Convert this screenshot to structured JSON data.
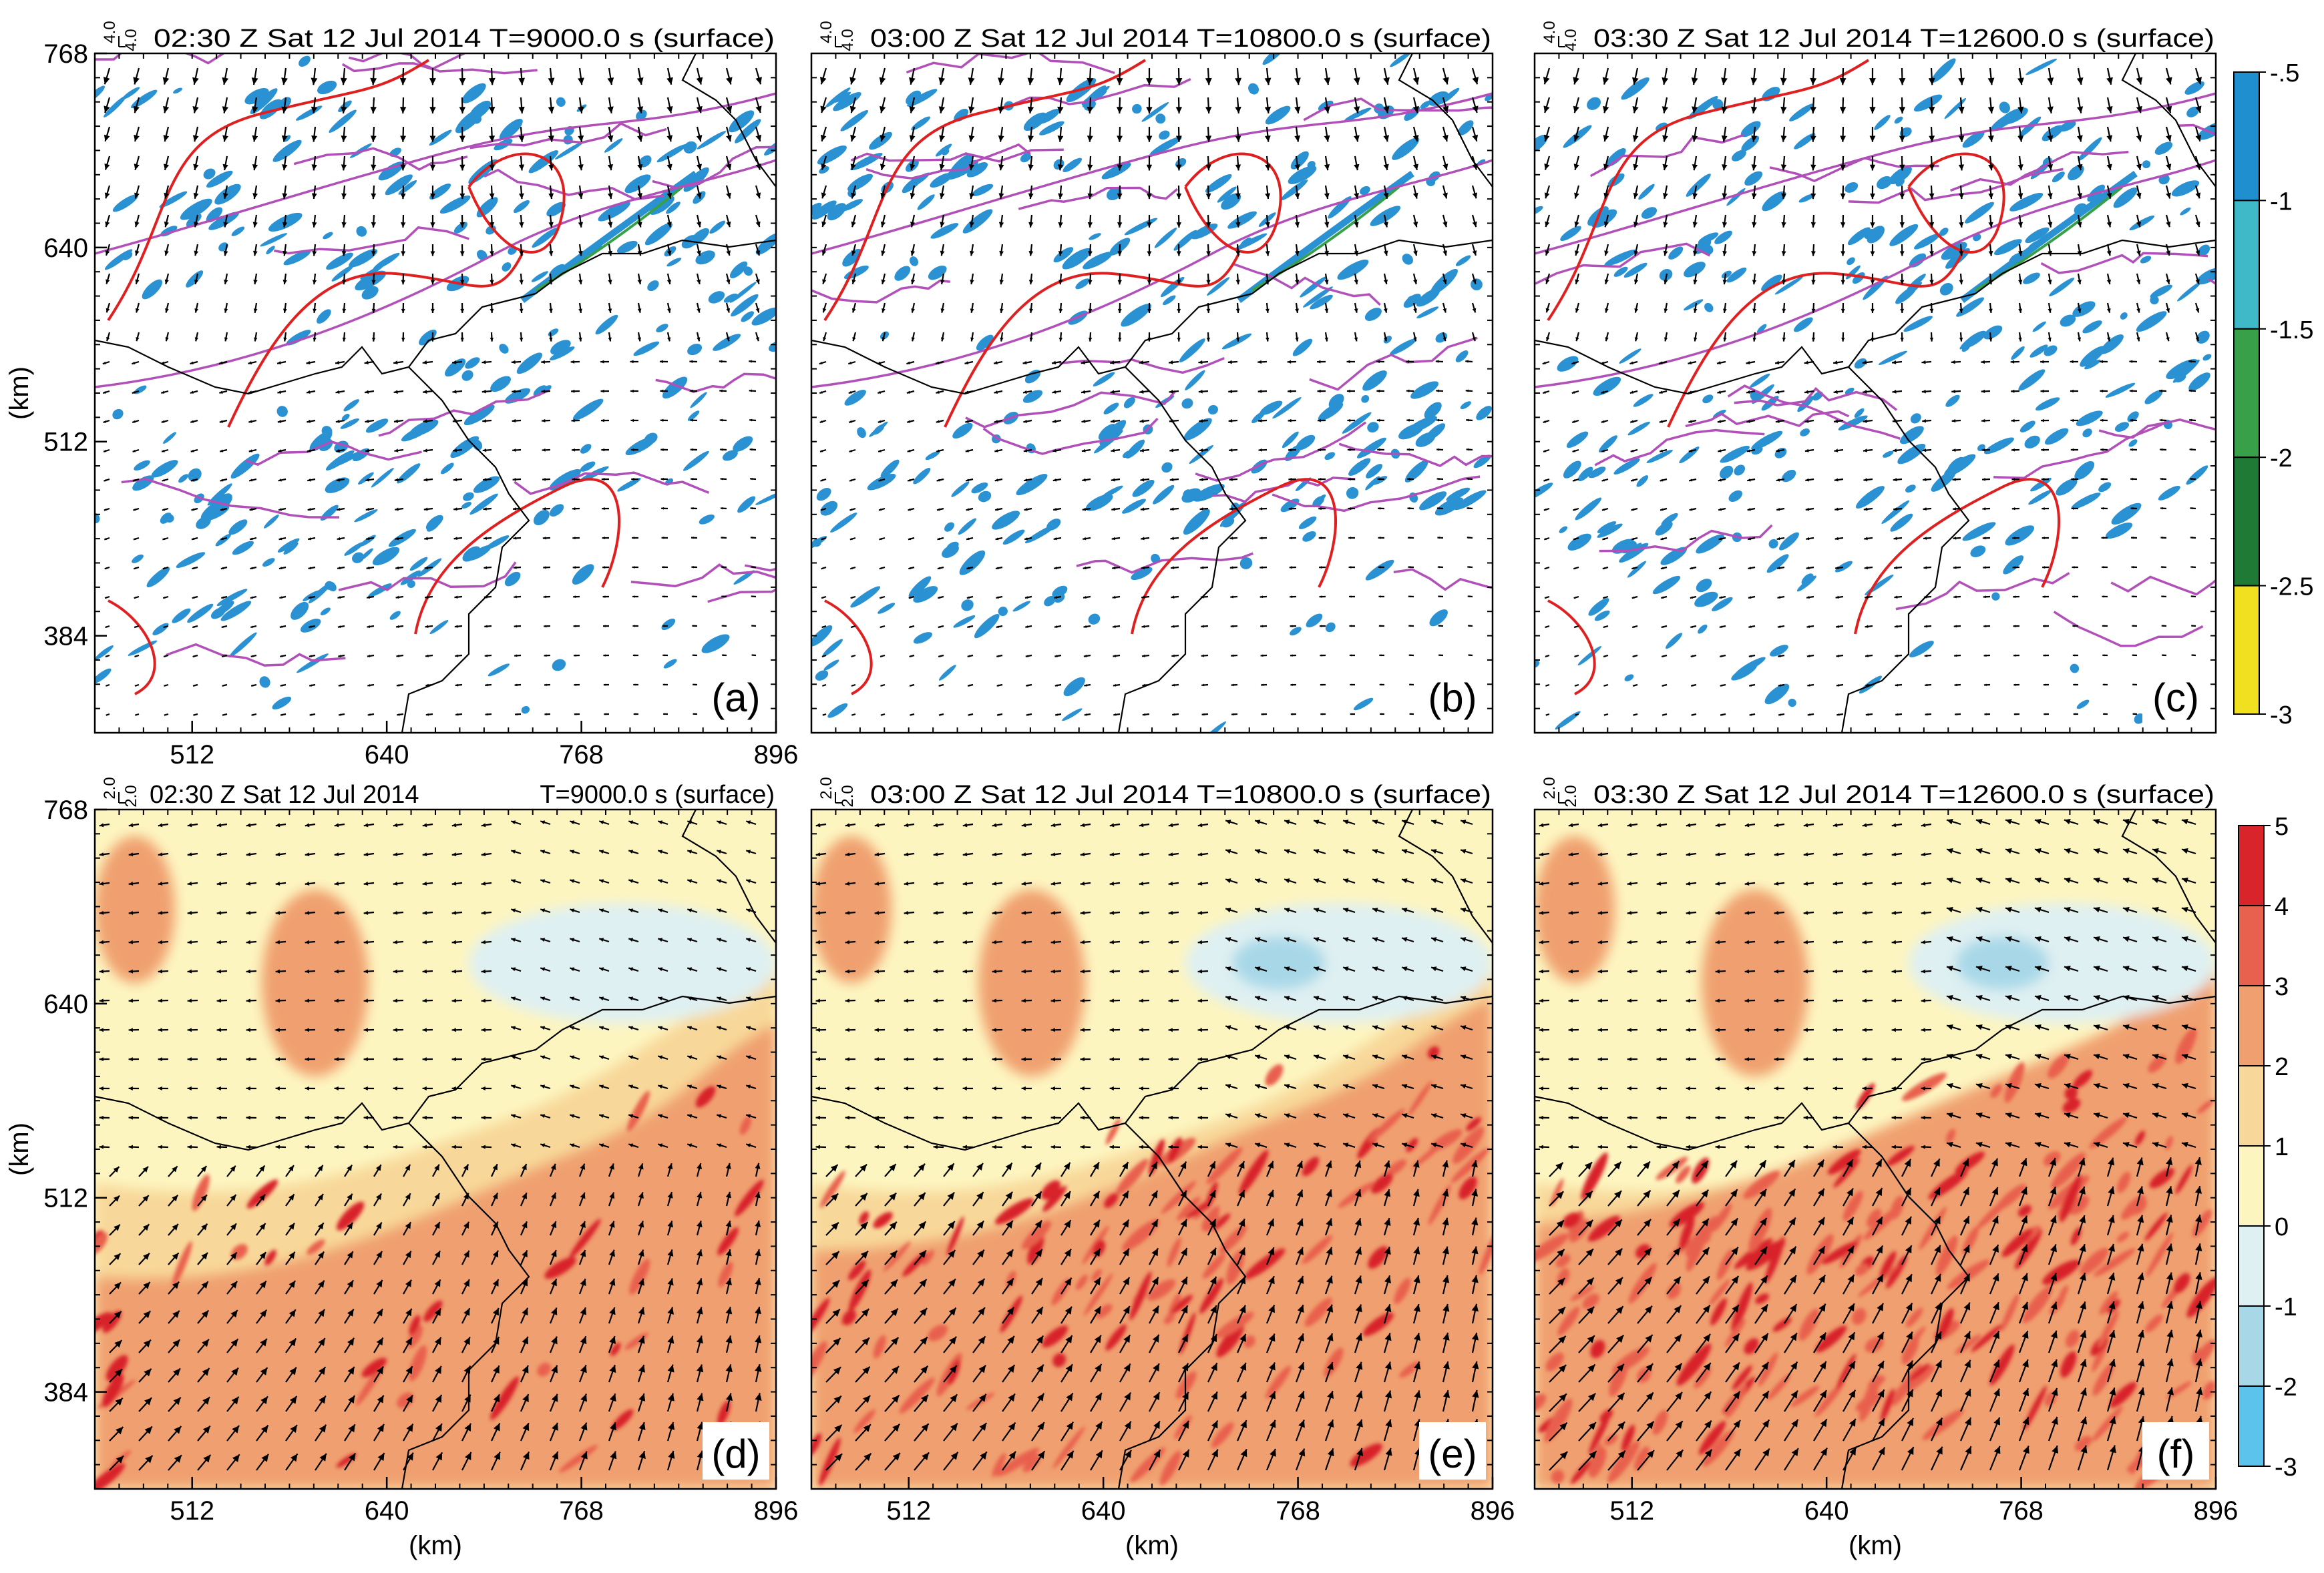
{
  "chart_data": [
    {
      "panel": "a",
      "row": "top",
      "type": "heatmap",
      "title": "02:30 Z Sat 12 Jul 2014 T=9000.0 s (surface)",
      "label": "(a)",
      "vector_ref": "4.0",
      "vector_ref_top": "4.0",
      "xlim": [
        448,
        896
      ],
      "ylim": [
        320,
        768
      ],
      "ylabel": "(km)",
      "yticks": [
        384,
        512,
        640,
        768
      ],
      "xticks": [
        512,
        640,
        768,
        896
      ]
    },
    {
      "panel": "b",
      "row": "top",
      "type": "heatmap",
      "title": "03:00 Z Sat 12 Jul 2014 T=10800.0 s (surface)",
      "label": "(b)",
      "vector_ref": "4.0",
      "vector_ref_top": "4.0",
      "xlim": [
        448,
        896
      ],
      "ylim": [
        320,
        768
      ]
    },
    {
      "panel": "c",
      "row": "top",
      "type": "heatmap",
      "title": "03:30 Z Sat 12 Jul 2014 T=12600.0 s (surface)",
      "label": "(c)",
      "vector_ref": "4.0",
      "vector_ref_top": "4.0",
      "xlim": [
        448,
        896
      ],
      "ylim": [
        320,
        768
      ]
    },
    {
      "panel": "d",
      "row": "bottom",
      "type": "heatmap",
      "title_left": "02:30 Z Sat 12 Jul 2014",
      "title_right": "T=9000.0 s (surface)",
      "label": "(d)",
      "vector_ref": "2.0",
      "vector_ref_top": "2.0",
      "xlim": [
        448,
        896
      ],
      "ylim": [
        320,
        768
      ],
      "xlabel": "(km)",
      "ylabel": "(km)",
      "xticks": [
        512,
        640,
        768,
        896
      ],
      "yticks": [
        384,
        512,
        640,
        768
      ]
    },
    {
      "panel": "e",
      "row": "bottom",
      "type": "heatmap",
      "title": "03:00 Z Sat 12 Jul 2014 T=10800.0 s (surface)",
      "label": "(e)",
      "vector_ref": "2.0",
      "vector_ref_top": "2.0",
      "xlim": [
        448,
        896
      ],
      "ylim": [
        320,
        768
      ],
      "xlabel": "(km)",
      "xticks": [
        512,
        640,
        768,
        896
      ]
    },
    {
      "panel": "f",
      "row": "bottom",
      "type": "heatmap",
      "title": "03:30 Z Sat 12 Jul 2014 T=12600.0 s (surface)",
      "label": "(f)",
      "vector_ref": "2.0",
      "vector_ref_top": "2.0",
      "xlim": [
        448,
        896
      ],
      "ylim": [
        320,
        768
      ],
      "xlabel": "(km)",
      "xticks": [
        512,
        640,
        768,
        896
      ]
    }
  ],
  "colorbar_top": {
    "labels": [
      "-.5",
      "-1",
      "-1.5",
      "-2",
      "-2.5",
      "-3"
    ],
    "colors": [
      "#1f8fd0",
      "#3fb8c8",
      "#38a048",
      "#1e7a35",
      "#f0e020"
    ]
  },
  "colorbar_bottom": {
    "labels": [
      "5",
      "4",
      "3",
      "2",
      "1",
      "0",
      "-1",
      "-2",
      "-3"
    ],
    "colors": [
      "#d8242a",
      "#e8604e",
      "#f0a070",
      "#f8d89a",
      "#fdf5c0",
      "#dff0f2",
      "#a8d8e8",
      "#5cc4ec"
    ]
  },
  "overlay_colors": {
    "contour_red": "#e02020",
    "contour_purple": "#b050b8",
    "divergence": "#2a92d2",
    "border": "#000000"
  }
}
